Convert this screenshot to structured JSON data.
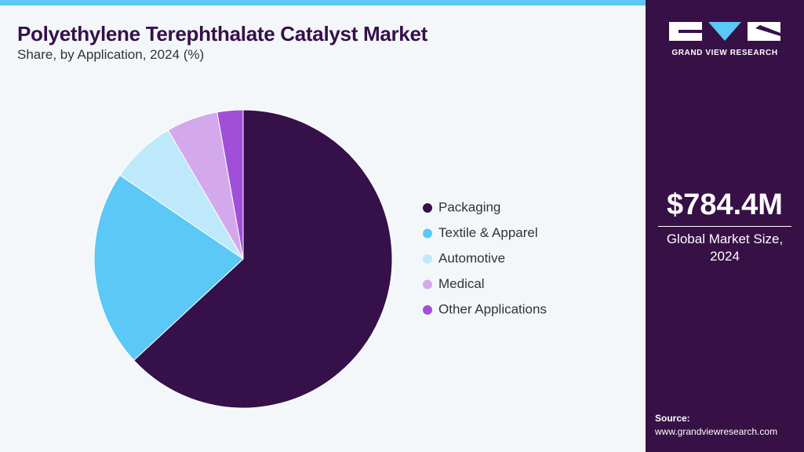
{
  "chart_data": {
    "type": "pie",
    "title": "Polyethylene Terephthalate Catalyst Market",
    "subtitle": "Share, by Application, 2024 (%)",
    "categories": [
      "Packaging",
      "Textile & Apparel",
      "Automotive",
      "Medical",
      "Other Applications"
    ],
    "values": [
      63.1,
      21.4,
      7.1,
      5.6,
      2.8
    ],
    "colors": [
      "#361048",
      "#5bc8f5",
      "#bde9fa",
      "#d3a9ec",
      "#a14fd8"
    ],
    "legend": "right"
  },
  "panel": {
    "brand": "GRAND VIEW RESEARCH",
    "market_size": "$784.4M",
    "market_size_label": "Global Market Size, 2024",
    "source_label": "Source:",
    "source_url": "www.grandviewresearch.com"
  }
}
